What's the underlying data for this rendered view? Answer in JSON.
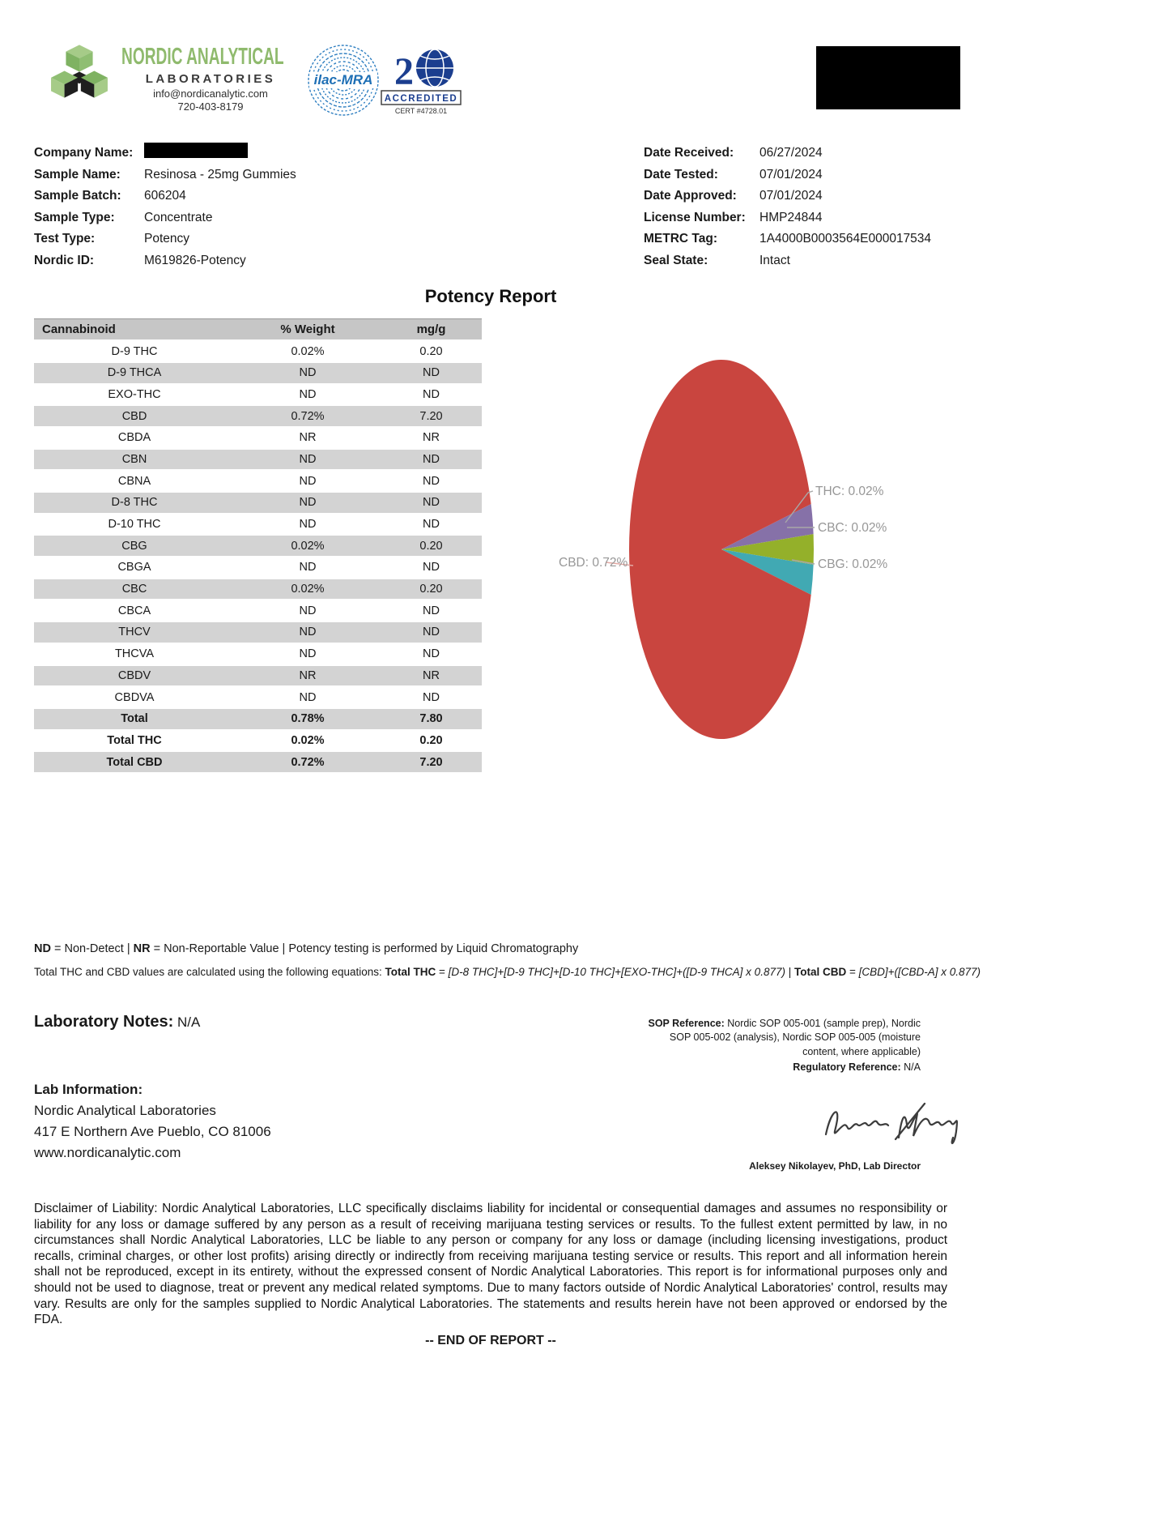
{
  "header": {
    "brand_name": "NORDIC ANALYTICAL",
    "brand_sub": "LABORATORIES",
    "brand_email": "info@nordicanalytic.com",
    "brand_phone": "720-403-8179",
    "ilac_label": "ilac-MRA",
    "a2la_accredited": "ACCREDITED",
    "a2la_cert": "CERT #4728.01"
  },
  "sample_info": {
    "left": [
      {
        "label": "Company Name:",
        "value": "",
        "redacted": true
      },
      {
        "label": "Sample Name:",
        "value": "Resinosa - 25mg Gummies"
      },
      {
        "label": "Sample Batch:",
        "value": "606204"
      },
      {
        "label": "Sample Type:",
        "value": "Concentrate"
      },
      {
        "label": "Test Type:",
        "value": "Potency"
      },
      {
        "label": "Nordic ID:",
        "value": "M619826-Potency"
      }
    ],
    "right": [
      {
        "label": "Date Received:",
        "value": "06/27/2024"
      },
      {
        "label": "Date Tested:",
        "value": "07/01/2024"
      },
      {
        "label": "Date Approved:",
        "value": "07/01/2024"
      },
      {
        "label": "License Number:",
        "value": "HMP24844"
      },
      {
        "label": "METRC Tag:",
        "value": "1A4000B0003564E000017534"
      },
      {
        "label": "Seal State:",
        "value": "Intact"
      }
    ]
  },
  "report_title": "Potency Report",
  "table": {
    "columns": [
      "Cannabinoid",
      "% Weight",
      "mg/g"
    ],
    "rows": [
      [
        "D-9 THC",
        "0.02%",
        "0.20"
      ],
      [
        "D-9 THCA",
        "ND",
        "ND"
      ],
      [
        "EXO-THC",
        "ND",
        "ND"
      ],
      [
        "CBD",
        "0.72%",
        "7.20"
      ],
      [
        "CBDA",
        "NR",
        "NR"
      ],
      [
        "CBN",
        "ND",
        "ND"
      ],
      [
        "CBNA",
        "ND",
        "ND"
      ],
      [
        "D-8 THC",
        "ND",
        "ND"
      ],
      [
        "D-10 THC",
        "ND",
        "ND"
      ],
      [
        "CBG",
        "0.02%",
        "0.20"
      ],
      [
        "CBGA",
        "ND",
        "ND"
      ],
      [
        "CBC",
        "0.02%",
        "0.20"
      ],
      [
        "CBCA",
        "ND",
        "ND"
      ],
      [
        "THCV",
        "ND",
        "ND"
      ],
      [
        "THCVA",
        "ND",
        "ND"
      ],
      [
        "CBDV",
        "NR",
        "NR"
      ],
      [
        "CBDVA",
        "ND",
        "ND"
      ]
    ],
    "totals": [
      [
        "Total",
        "0.78%",
        "7.80"
      ],
      [
        "Total THC",
        "0.02%",
        "0.20"
      ],
      [
        "Total CBD",
        "0.72%",
        "7.20"
      ]
    ]
  },
  "chart_data": {
    "type": "pie",
    "title": "",
    "units": "% weight",
    "total": 0.78,
    "legend_position": "callout-labels",
    "slices": [
      {
        "name": "CBD",
        "value": 0.72,
        "label": "CBD: 0.72%",
        "color": "#c9453f"
      },
      {
        "name": "THC",
        "value": 0.02,
        "label": "THC: 0.02%",
        "color": "#8671a8"
      },
      {
        "name": "CBC",
        "value": 0.02,
        "label": "CBC: 0.02%",
        "color": "#94b02a"
      },
      {
        "name": "CBG",
        "value": 0.02,
        "label": "CBG: 0.02%",
        "color": "#41a9b3"
      }
    ]
  },
  "footnote1": [
    {
      "t": "ND",
      "b": 1
    },
    {
      "t": " = Non-Detect | "
    },
    {
      "t": "NR",
      "b": 1
    },
    {
      "t": " = Non-Reportable Value | Potency testing is performed by Liquid Chromatography"
    }
  ],
  "footnote2": [
    {
      "t": "Total THC and CBD values are calculated using the following equations: "
    },
    {
      "t": "Total THC",
      "b": 1
    },
    {
      "t": " = "
    },
    {
      "t": "[D-8 THC]+[D-9 THC]+[D-10 THC]+[EXO-THC]+([D-9 THCA] x 0.877)",
      "i": 1
    },
    {
      "t": " | "
    },
    {
      "t": "Total CBD",
      "b": 1
    },
    {
      "t": " = "
    },
    {
      "t": "[CBD]+([CBD-A] x 0.877)",
      "i": 1
    }
  ],
  "lab_notes": {
    "label": "Laboratory Notes:",
    "value": "N/A"
  },
  "sop": {
    "reference": [
      {
        "t": "SOP Reference: ",
        "b": 1
      },
      {
        "t": "Nordic SOP 005-001 (sample prep), Nordic SOP 005-002 (analysis), Nordic SOP 005-005 (moisture content, where applicable)"
      }
    ],
    "regulatory": [
      {
        "t": "Regulatory Reference: ",
        "b": 1
      },
      {
        "t": "N/A"
      }
    ]
  },
  "lab_info": {
    "heading": "Lab Information:",
    "lines": [
      "Nordic Analytical Laboratories",
      "417 E Northern Ave Pueblo, CO 81006",
      "www.nordicanalytic.com"
    ]
  },
  "signature": {
    "caption": "Aleksey Nikolayev, PhD, Lab Director"
  },
  "disclaimer": "Disclaimer of Liability: Nordic Analytical Laboratories, LLC specifically disclaims liability for incidental or consequential damages and assumes no responsibility or liability for any loss or damage suffered by any person as a result of receiving marijuana testing services or results. To the fullest extent permitted by law, in no circumstances shall Nordic Analytical Laboratories, LLC be liable to any person or company for any loss or damage (including licensing investigations, product recalls, criminal charges, or other lost profits) arising directly or indirectly from receiving marijuana testing service or results. This report and all information herein shall not be reproduced, except in its entirety, without the expressed consent of Nordic Analytical Laboratories. This report is for informational purposes only and should not be used to diagnose, treat or prevent any medical related symptoms. Due to many factors outside of Nordic Analytical Laboratories' control, results may vary. Results are only for the samples supplied to Nordic Analytical Laboratories. The statements and results herein have not been approved or endorsed by the FDA.",
  "end_of_report": "-- END OF REPORT --"
}
